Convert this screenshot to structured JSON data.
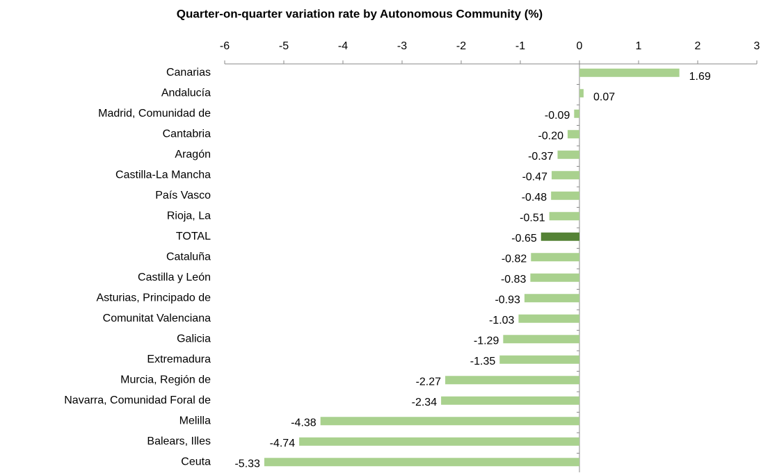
{
  "chart_data": {
    "type": "hbar",
    "title": "Quarter-on-quarter variation rate by Autonomous Community (%)",
    "categories": [
      "Canarias",
      "Andalucía",
      "Madrid, Comunidad de",
      "Cantabria",
      "Aragón",
      "Castilla-La Mancha",
      "País Vasco",
      "Rioja, La",
      "TOTAL",
      "Cataluña",
      "Castilla y León",
      "Asturias, Principado de",
      "Comunitat Valenciana",
      "Galicia",
      "Extremadura",
      "Murcia, Región de",
      "Navarra, Comunidad Foral de",
      "Melilla",
      "Balears, Illes",
      "Ceuta"
    ],
    "values": [
      1.69,
      0.07,
      -0.09,
      -0.2,
      -0.37,
      -0.47,
      -0.48,
      -0.51,
      -0.65,
      -0.82,
      -0.83,
      -0.93,
      -1.03,
      -1.29,
      -1.35,
      -2.27,
      -2.34,
      -4.38,
      -4.74,
      -5.33
    ],
    "value_labels": [
      "1.69",
      "0.07",
      "-0.09",
      "-0.20",
      "-0.37",
      "-0.47",
      "-0.48",
      "-0.51",
      "-0.65",
      "-0.82",
      "-0.83",
      "-0.93",
      "-1.03",
      "-1.29",
      "-1.35",
      "-2.27",
      "-2.34",
      "-4.38",
      "-4.74",
      "-5.33"
    ],
    "colors": [
      "#a9d18e",
      "#a9d18e",
      "#a9d18e",
      "#a9d18e",
      "#a9d18e",
      "#a9d18e",
      "#a9d18e",
      "#a9d18e",
      "#548235",
      "#a9d18e",
      "#a9d18e",
      "#a9d18e",
      "#a9d18e",
      "#a9d18e",
      "#a9d18e",
      "#a9d18e",
      "#a9d18e",
      "#a9d18e",
      "#a9d18e",
      "#a9d18e"
    ],
    "xlim": [
      -6,
      3
    ],
    "xticks": [
      -6,
      -5,
      -4,
      -3,
      -2,
      -1,
      0,
      1,
      2,
      3
    ],
    "axis_position": "top"
  }
}
